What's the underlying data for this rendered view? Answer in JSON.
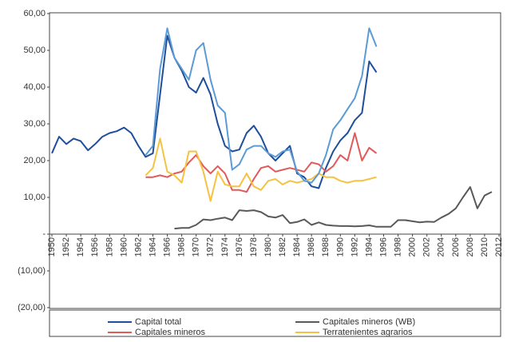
{
  "chart_data": {
    "type": "line",
    "x": [
      1950,
      1951,
      1952,
      1953,
      1954,
      1955,
      1956,
      1957,
      1958,
      1959,
      1960,
      1961,
      1962,
      1963,
      1964,
      1965,
      1966,
      1967,
      1968,
      1969,
      1970,
      1971,
      1972,
      1973,
      1974,
      1975,
      1976,
      1977,
      1978,
      1979,
      1980,
      1981,
      1982,
      1983,
      1984,
      1985,
      1986,
      1987,
      1988,
      1989,
      1990,
      1991,
      1992,
      1993,
      1994,
      1995,
      1996,
      1997,
      1998,
      1999,
      2000,
      2001,
      2002,
      2003,
      2004,
      2005,
      2006,
      2007,
      2008,
      2009,
      2010,
      2011,
      2012
    ],
    "xlim": [
      1950,
      2012
    ],
    "xticks": [
      1950,
      1952,
      1954,
      1956,
      1958,
      1960,
      1962,
      1964,
      1966,
      1968,
      1970,
      1972,
      1974,
      1976,
      1978,
      1980,
      1982,
      1984,
      1986,
      1988,
      1990,
      1992,
      1994,
      1996,
      1998,
      2000,
      2002,
      2004,
      2006,
      2008,
      2010,
      2012
    ],
    "ylim": [
      -20,
      60
    ],
    "yticks": [
      {
        "value": 60,
        "label": "60,00"
      },
      {
        "value": 50,
        "label": "50,00"
      },
      {
        "value": 40,
        "label": "40,00"
      },
      {
        "value": 30,
        "label": "30,00"
      },
      {
        "value": 20,
        "label": "20,00"
      },
      {
        "value": 10,
        "label": "10,00"
      },
      {
        "value": 0,
        "label": "-"
      },
      {
        "value": -10,
        "label": "(10,00)"
      },
      {
        "value": -20,
        "label": "(20,00)"
      }
    ],
    "series": [
      {
        "name": "Capital total",
        "color": "#1f4e9c",
        "values": [
          22,
          26.5,
          24.5,
          26,
          25.3,
          22.8,
          24.5,
          26.5,
          27.5,
          28,
          29,
          27.5,
          24,
          21,
          22,
          38,
          54,
          48,
          44.5,
          40,
          38.5,
          42.5,
          38,
          30,
          24,
          22.5,
          23,
          27.5,
          29.5,
          26.5,
          22,
          20,
          22,
          24,
          16.5,
          15.5,
          13,
          12.5,
          18,
          22.5,
          25.5,
          27.5,
          31,
          33,
          47,
          44,
          null,
          null,
          null,
          null,
          null,
          null,
          null,
          null,
          null,
          null,
          null,
          null,
          null,
          null,
          null,
          null,
          null
        ]
      },
      {
        "name": "Capitales mineros (WB)",
        "color": "#595959",
        "values": [
          null,
          null,
          null,
          null,
          null,
          null,
          null,
          null,
          null,
          null,
          null,
          null,
          null,
          null,
          null,
          null,
          null,
          1.5,
          1.7,
          1.7,
          2.5,
          4,
          3.8,
          4.2,
          4.5,
          3.8,
          6.5,
          6.3,
          6.5,
          6,
          4.8,
          4.5,
          5.2,
          3,
          3.3,
          4,
          2.5,
          3.2,
          2.5,
          2.3,
          2.2,
          2.2,
          2.1,
          2.2,
          2.4,
          2,
          2,
          2,
          3.8,
          3.8,
          3.5,
          3.2,
          3.4,
          3.3,
          4.5,
          5.5,
          7,
          10,
          12.8,
          7,
          10.5,
          11.5,
          null
        ]
      },
      {
        "name": "Capitales mineros",
        "color": "#e05a5a",
        "values": [
          null,
          null,
          null,
          null,
          null,
          null,
          null,
          null,
          null,
          null,
          null,
          null,
          null,
          15.5,
          15.5,
          16,
          15.5,
          16.5,
          17,
          19.5,
          21.5,
          18.5,
          16.5,
          18.5,
          16.5,
          12,
          12,
          11.5,
          15,
          18,
          18.5,
          17,
          17.5,
          18,
          17.5,
          17,
          19.5,
          19,
          17,
          18.5,
          21.5,
          20,
          27.5,
          20,
          23.5,
          22,
          null,
          null,
          null,
          null,
          null,
          null,
          null,
          null,
          null,
          null,
          null,
          null,
          null,
          null,
          null,
          null,
          null
        ]
      },
      {
        "name": "Terratenientes agrarios",
        "color": "#f5c242",
        "values": [
          null,
          null,
          null,
          null,
          null,
          null,
          null,
          null,
          null,
          null,
          null,
          null,
          null,
          16,
          18,
          26,
          17,
          16,
          14,
          22.5,
          22.5,
          17,
          9,
          17,
          13.5,
          13,
          13,
          16.5,
          13,
          12,
          14.5,
          15,
          13.5,
          14.5,
          14,
          14.5,
          15,
          16.5,
          15.5,
          15.5,
          14.5,
          14,
          14.5,
          14.5,
          15,
          15.5,
          null,
          null,
          null,
          null,
          null,
          null,
          null,
          null,
          null,
          null,
          null,
          null,
          null,
          null,
          null,
          null,
          null
        ]
      },
      {
        "name": "Capital total",
        "color": "#5b9bd5",
        "values": [
          null,
          null,
          null,
          null,
          null,
          null,
          null,
          null,
          null,
          null,
          null,
          null,
          null,
          21.5,
          24,
          45,
          56,
          48,
          45,
          42,
          50,
          52,
          42,
          35,
          33,
          17.5,
          19,
          23,
          24,
          24,
          22,
          21,
          22.5,
          23,
          17,
          14.5,
          14,
          16.5,
          21.5,
          28.5,
          31,
          34,
          37,
          43,
          56,
          51,
          null,
          null,
          null,
          null,
          null,
          null,
          null,
          null,
          null,
          null,
          null,
          null,
          null,
          null,
          null,
          null,
          null
        ]
      }
    ]
  }
}
